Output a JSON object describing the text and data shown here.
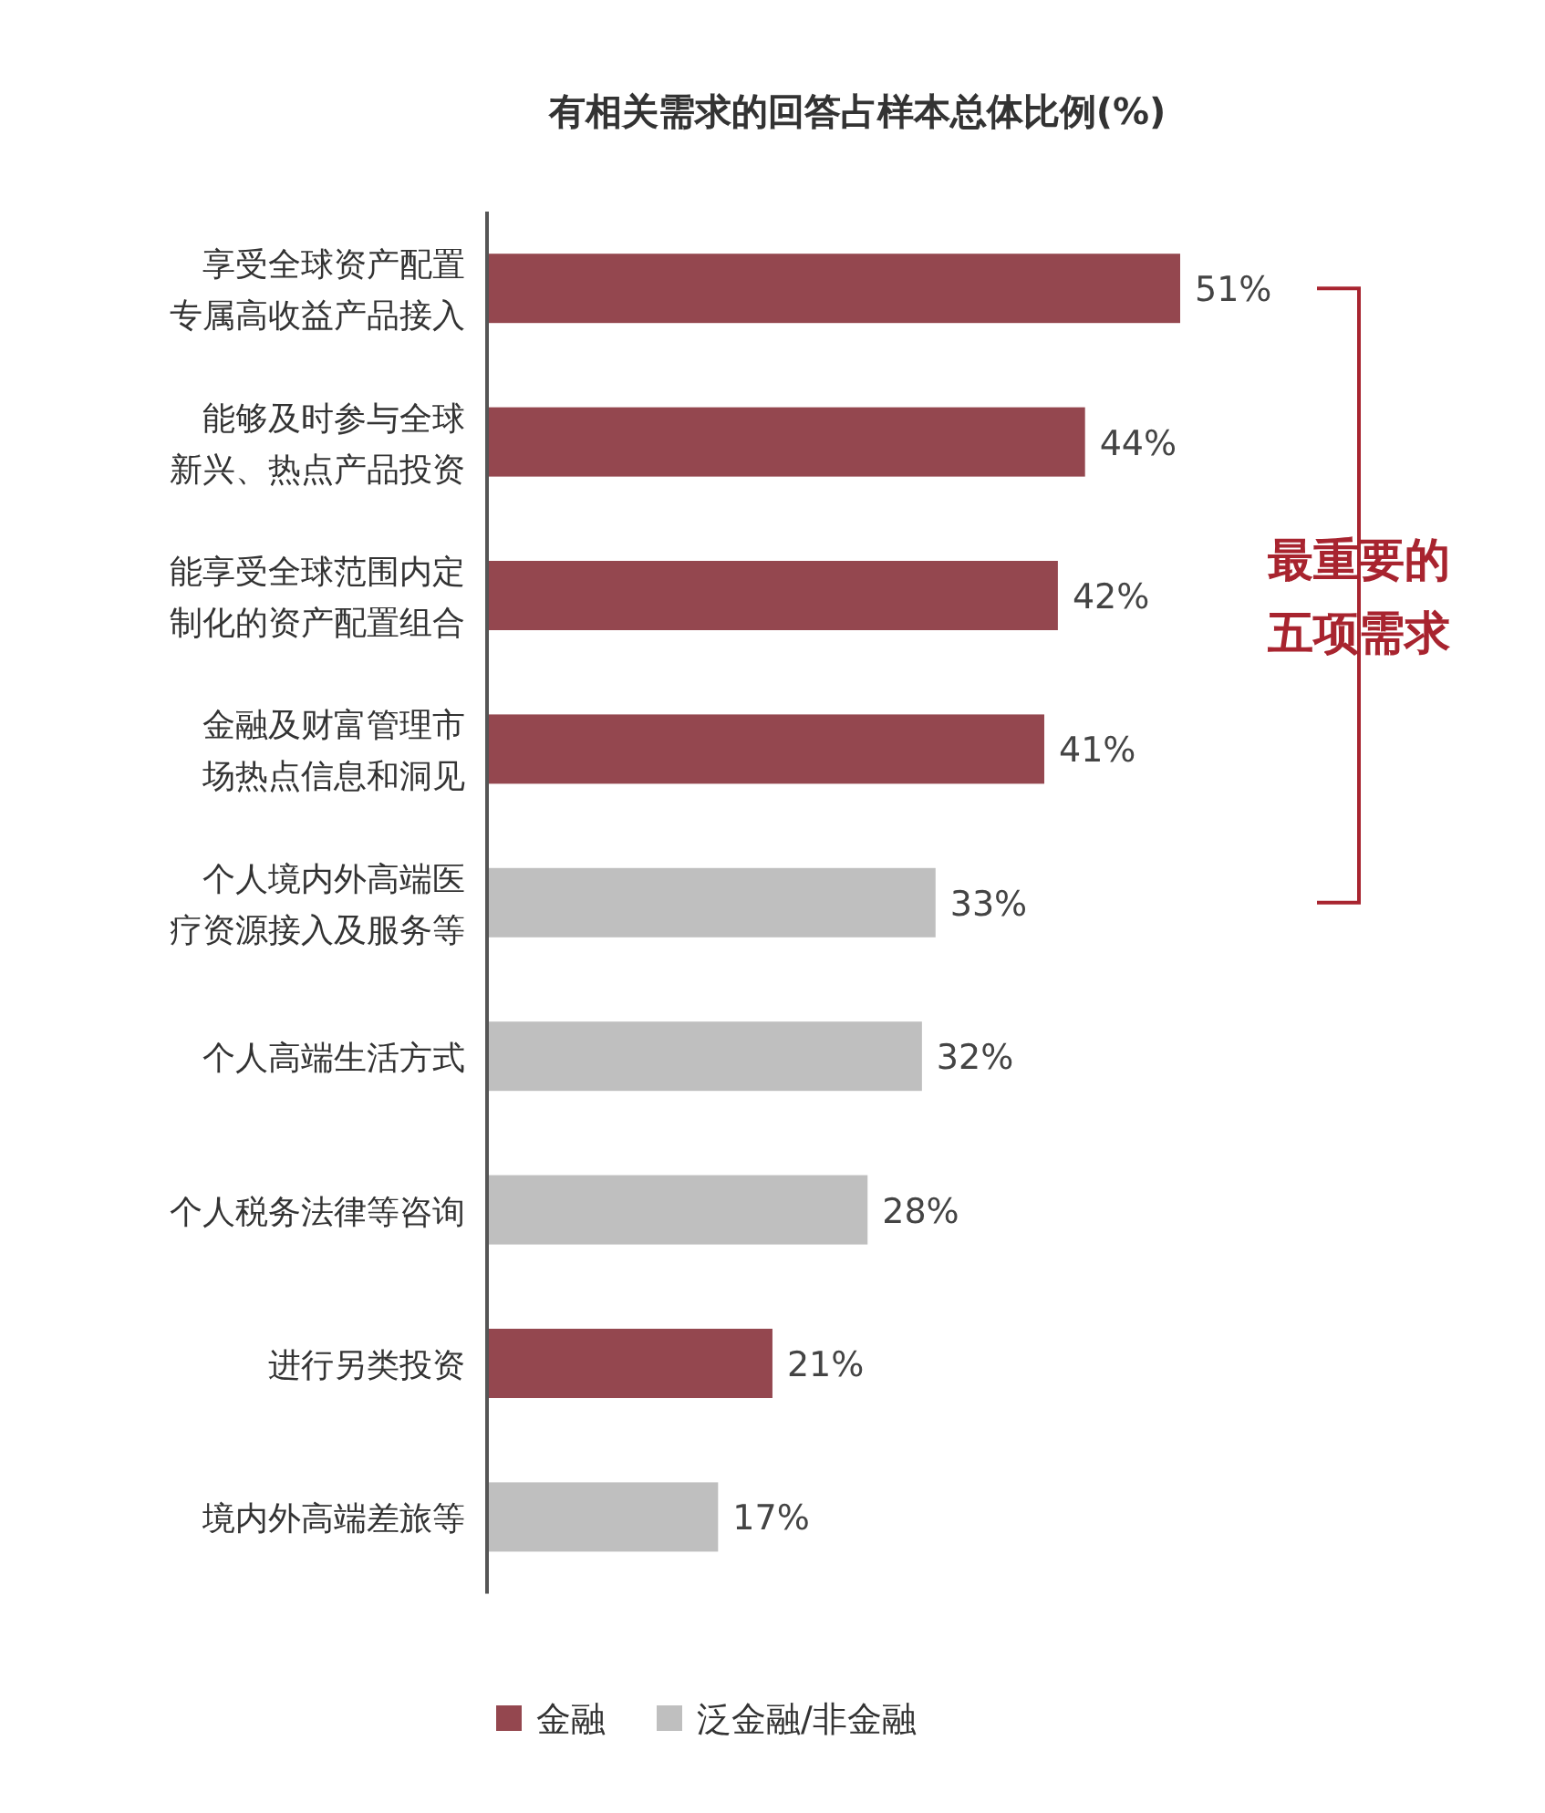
{
  "chart_data": {
    "type": "bar",
    "orientation": "horizontal",
    "title": "有相关需求的回答占样本总体比例(%)",
    "categories": [
      "享受全球资产配置专属高收益产品接入",
      "能够及时参与全球新兴、热点产品投资",
      "能享受全球范围内定制化的资产配置组合",
      "金融及财富管理市场热点信息和洞见",
      "个人境内外高端医疗资源接入及服务等",
      "个人高端生活方式",
      "个人税务法律等咨询",
      "进行另类投资",
      "境内外高端差旅等"
    ],
    "series": [
      {
        "name": "金融",
        "color": "#94474f",
        "values": [
          51,
          44,
          42,
          41,
          null,
          null,
          null,
          21,
          null
        ],
        "value_labels": [
          "51%",
          "44%",
          "42%",
          "41%",
          null,
          null,
          null,
          "21%",
          null
        ]
      },
      {
        "name": "泛金融/非金融",
        "color": "#bfbfbf",
        "values": [
          null,
          null,
          null,
          null,
          33,
          32,
          28,
          null,
          17
        ],
        "value_labels": [
          null,
          null,
          null,
          null,
          "33%",
          "32%",
          "28%",
          null,
          "17%"
        ]
      }
    ],
    "annotations": [
      "最重要的五项需求"
    ],
    "legend": "bottom"
  }
}
